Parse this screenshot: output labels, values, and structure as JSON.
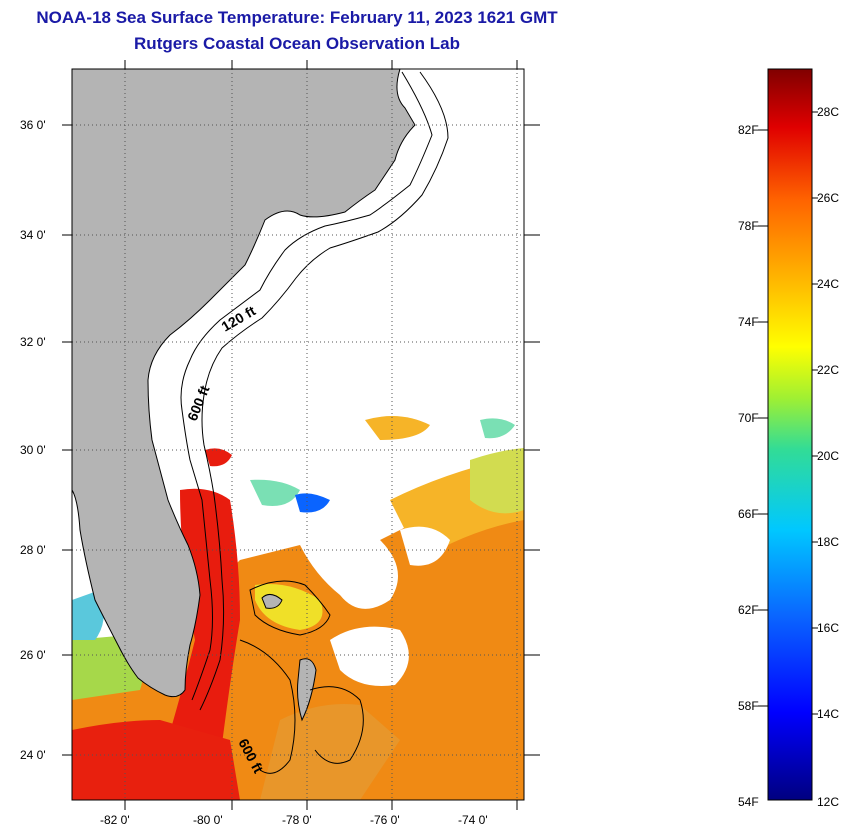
{
  "title": {
    "line1": "NOAA-18 Sea Surface Temperature:  February 11, 2023 1621 GMT",
    "line2": "Rutgers Coastal Ocean Observation Lab"
  },
  "map": {
    "lat_labels": [
      "36 0'",
      "34 0'",
      "32 0'",
      "30 0'",
      "28 0'",
      "26 0'",
      "24 0'"
    ],
    "lon_labels": [
      "-82 0'",
      "-80 0'",
      "-78 0'",
      "-76 0'",
      "-74 0'"
    ],
    "contour_labels": {
      "shelf_120": "120 ft",
      "shelf_600": "600 ft",
      "bahamas_600": "600 ft"
    },
    "colors": {
      "land": "#b4b4b4",
      "cloud": "#ffffff",
      "warm": "#e81c0e",
      "orange": "#f08a14"
    }
  },
  "colorbar": {
    "fahrenheit_labels": [
      "82F",
      "78F",
      "74F",
      "70F",
      "66F",
      "62F",
      "58F",
      "54F"
    ],
    "celsius_labels": [
      "28C",
      "26C",
      "24C",
      "22C",
      "20C",
      "18C",
      "16C",
      "14C",
      "12C"
    ],
    "range_f": [
      54,
      84
    ],
    "range_c": [
      12,
      29
    ]
  }
}
